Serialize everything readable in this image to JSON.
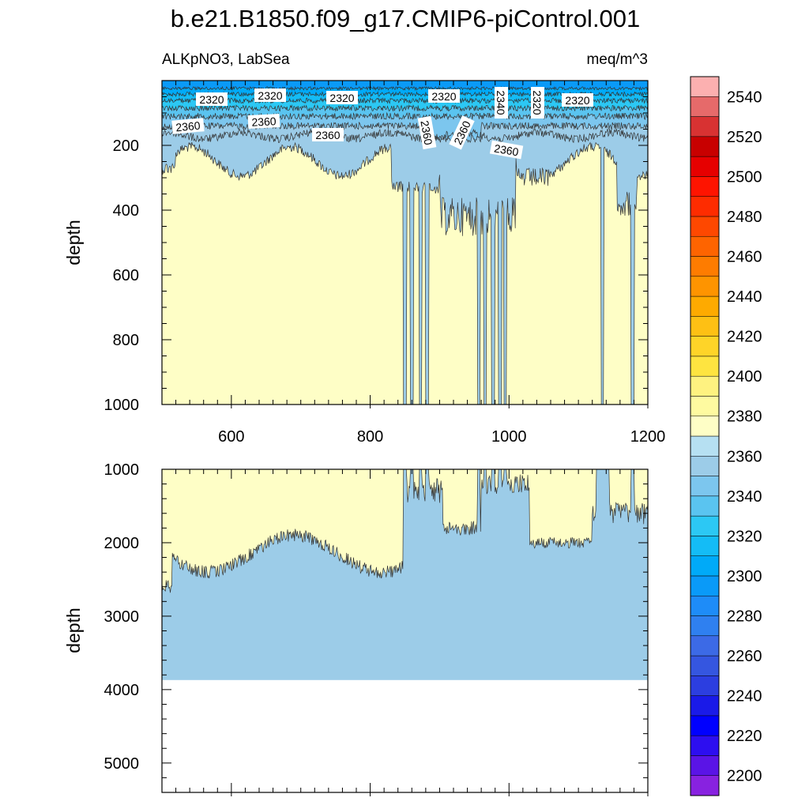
{
  "chart_data": {
    "type": "heatmap",
    "title": "b.e21.B1850.f09_g17.CMIP6-piControl.001",
    "subtitle_left": "ALKpNO3, LabSea",
    "subtitle_right": "meq/m^3",
    "ylabel": "depth",
    "xlim": [
      500,
      1200
    ],
    "x_ticks": [
      "600",
      "800",
      "1000",
      "1200"
    ],
    "colorbar": {
      "levels": [
        2200,
        2210,
        2220,
        2230,
        2240,
        2250,
        2260,
        2270,
        2280,
        2290,
        2300,
        2310,
        2320,
        2330,
        2340,
        2350,
        2360,
        2370,
        2380,
        2390,
        2400,
        2410,
        2420,
        2430,
        2440,
        2450,
        2460,
        2470,
        2480,
        2490,
        2500,
        2510,
        2520,
        2530,
        2540,
        2550
      ],
      "labels": [
        "2200",
        "2220",
        "2240",
        "2260",
        "2280",
        "2300",
        "2320",
        "2340",
        "2360",
        "2380",
        "2400",
        "2420",
        "2440",
        "2460",
        "2480",
        "2500",
        "2520",
        "2540"
      ],
      "colors": [
        "#8822e0",
        "#5a14e6",
        "#2d0ef0",
        "#0000ff",
        "#1a1ae8",
        "#2c3ee0",
        "#3556e0",
        "#3c6ae6",
        "#2f80f0",
        "#1e8cf8",
        "#0a9af8",
        "#00aaf8",
        "#14bcf6",
        "#2cc8f4",
        "#5ac4f0",
        "#7cc6ee",
        "#9ccce8",
        "#b6e0f2",
        "#fefec6",
        "#fefaa0",
        "#fef280",
        "#fee440",
        "#fed428",
        "#fec014",
        "#feaa00",
        "#fe9400",
        "#fe7c00",
        "#fe6400",
        "#fe4800",
        "#fe2c00",
        "#fe1400",
        "#e60000",
        "#c80000",
        "#d83232",
        "#e66a6a",
        "#fcb0b0"
      ]
    },
    "panels": [
      {
        "name": "upper",
        "ylim": [
          0,
          1000
        ],
        "y_ticks": [
          "200",
          "400",
          "600",
          "800",
          "1000"
        ],
        "contour_labels": [
          "2320",
          "2320",
          "2320",
          "2320",
          "2320",
          "2340",
          "2320",
          "2360",
          "2360",
          "2360",
          "2360",
          "2360",
          "2360"
        ]
      },
      {
        "name": "lower",
        "ylim": [
          1000,
          5400
        ],
        "y_ticks": [
          "1000",
          "2000",
          "3000",
          "4000",
          "5000"
        ],
        "ocean_bottom": 3870
      }
    ]
  }
}
